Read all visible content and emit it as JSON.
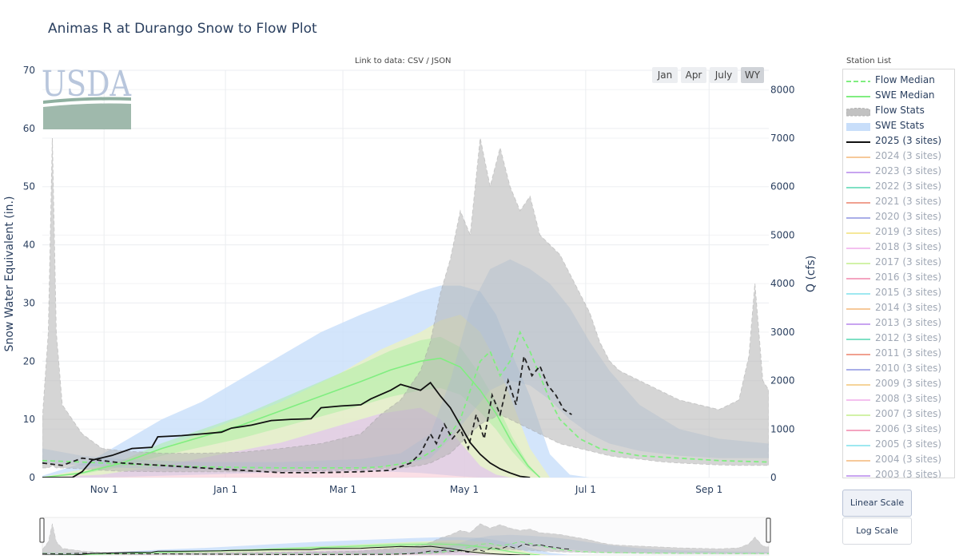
{
  "title": "Animas R at Durango Snow to Flow Plot",
  "link_prefix": "Link to data:",
  "link_csv": "CSV",
  "link_sep": "/",
  "link_json": "JSON",
  "logo_text": "USDA",
  "range_buttons": [
    "Jan",
    "Apr",
    "July",
    "WY"
  ],
  "active_range": "WY",
  "legend_title": "Station List",
  "scale_buttons": [
    "Linear Scale",
    "Log Scale"
  ],
  "colors": {
    "flow_median": "#80ee80",
    "swe_median": "#80ee80",
    "flow_stats": "#b4b4b4",
    "swe_stats": "#c8defa",
    "current": "#111111",
    "logo": "#b8c6dc"
  },
  "legend_items": [
    {
      "label": "Flow Median",
      "kind": "dash",
      "color": "#80ee80"
    },
    {
      "label": "SWE Median",
      "kind": "line",
      "color": "#80ee80"
    },
    {
      "label": "Flow Stats",
      "kind": "dashfill",
      "color": "#b4b4b4"
    },
    {
      "label": "SWE Stats",
      "kind": "fill",
      "color": "#c8defa"
    },
    {
      "label": "2025 (3 sites)",
      "kind": "line",
      "color": "#111111"
    },
    {
      "label": "2024 (3 sites)",
      "kind": "line",
      "color": "#f6c99a",
      "muted": true
    },
    {
      "label": "2023 (3 sites)",
      "kind": "line",
      "color": "#c8a4f0",
      "muted": true
    },
    {
      "label": "2022 (3 sites)",
      "kind": "line",
      "color": "#7fe0c4",
      "muted": true
    },
    {
      "label": "2021 (3 sites)",
      "kind": "line",
      "color": "#f0a090",
      "muted": true
    },
    {
      "label": "2020 (3 sites)",
      "kind": "line",
      "color": "#a9aee8",
      "muted": true
    },
    {
      "label": "2019 (3 sites)",
      "kind": "line",
      "color": "#f5e89a",
      "muted": true
    },
    {
      "label": "2018 (3 sites)",
      "kind": "line",
      "color": "#f4c0ef",
      "muted": true
    },
    {
      "label": "2017 (3 sites)",
      "kind": "line",
      "color": "#d2f2a8",
      "muted": true
    },
    {
      "label": "2016 (3 sites)",
      "kind": "line",
      "color": "#f4a4c0",
      "muted": true
    },
    {
      "label": "2015 (3 sites)",
      "kind": "line",
      "color": "#9ee8f0",
      "muted": true
    },
    {
      "label": "2014 (3 sites)",
      "kind": "line",
      "color": "#f6c99a",
      "muted": true
    },
    {
      "label": "2013 (3 sites)",
      "kind": "line",
      "color": "#c8a4f0",
      "muted": true
    },
    {
      "label": "2012 (3 sites)",
      "kind": "line",
      "color": "#7fe0c4",
      "muted": true
    },
    {
      "label": "2011 (3 sites)",
      "kind": "line",
      "color": "#f0a090",
      "muted": true
    },
    {
      "label": "2010 (3 sites)",
      "kind": "line",
      "color": "#a9aee8",
      "muted": true
    },
    {
      "label": "2009 (3 sites)",
      "kind": "line",
      "color": "#f5d49a",
      "muted": true
    },
    {
      "label": "2008 (3 sites)",
      "kind": "line",
      "color": "#f4c0ef",
      "muted": true
    },
    {
      "label": "2007 (3 sites)",
      "kind": "line",
      "color": "#d2f2a8",
      "muted": true
    },
    {
      "label": "2006 (3 sites)",
      "kind": "line",
      "color": "#f4a4c0",
      "muted": true
    },
    {
      "label": "2005 (3 sites)",
      "kind": "line",
      "color": "#9ee8f0",
      "muted": true
    },
    {
      "label": "2004 (3 sites)",
      "kind": "line",
      "color": "#f6c99a",
      "muted": true
    },
    {
      "label": "2003 (3 sites)",
      "kind": "line",
      "color": "#c8a4f0",
      "muted": true
    }
  ],
  "chart_data": {
    "type": "line",
    "title": "Animas R at Durango Snow to Flow Plot",
    "xlabel": "",
    "ylabel": "Snow Water Equivalent (in.)",
    "y2label": "Q (cfs)",
    "x_tick_labels": [
      "Nov 1",
      "Jan 1",
      "Mar 1",
      "May 1",
      "Jul 1",
      "Sep 1"
    ],
    "x_tick_days": [
      31,
      92,
      151,
      212,
      273,
      335
    ],
    "xlim_days": [
      0,
      365
    ],
    "ylim": [
      0,
      70
    ],
    "y_ticks": [
      0,
      10,
      20,
      30,
      40,
      50,
      60,
      70
    ],
    "y2lim": [
      0,
      8400
    ],
    "y2_ticks": [
      0,
      1000,
      2000,
      3000,
      4000,
      5000,
      6000,
      7000,
      8000
    ],
    "grid": true,
    "legend_placement": "right",
    "swe_series": {
      "swe_stats_outer": {
        "day": [
          0,
          25,
          40,
          60,
          80,
          100,
          120,
          140,
          160,
          175,
          190,
          200,
          210,
          220,
          228,
          235,
          245,
          255,
          265,
          275
        ],
        "low": [
          0,
          0,
          0.1,
          0.3,
          0.5,
          0.7,
          0.9,
          1.0,
          1.1,
          1.0,
          0.8,
          0.5,
          0.2,
          0,
          0,
          0,
          0,
          0,
          0,
          0
        ],
        "high": [
          0.3,
          3,
          6,
          10,
          13,
          17,
          21,
          25,
          28,
          30,
          32,
          33,
          33,
          32,
          28,
          22,
          14,
          4,
          0.5,
          0
        ]
      },
      "swe_stats_inner": {
        "day": [
          0,
          30,
          60,
          90,
          120,
          150,
          170,
          190,
          200,
          210,
          220,
          228,
          235,
          245,
          255
        ],
        "low": [
          0,
          0.5,
          2,
          4,
          6,
          9,
          11,
          12,
          10,
          6,
          2,
          0.5,
          0,
          0,
          0
        ],
        "high": [
          0.1,
          2,
          5,
          9,
          13,
          18,
          22,
          25,
          27,
          28,
          25,
          20,
          14,
          5,
          0
        ]
      },
      "swe_median": {
        "day": [
          0,
          20,
          40,
          60,
          80,
          100,
          120,
          140,
          160,
          175,
          190,
          200,
          210,
          220,
          228,
          236,
          244,
          250
        ],
        "value": [
          0,
          0.8,
          2.5,
          5,
          7,
          9,
          11.5,
          14,
          16.5,
          18.5,
          20,
          20.5,
          19,
          15,
          11,
          6,
          2,
          0
        ]
      },
      "swe_2025": {
        "day": [
          0,
          15,
          20,
          25,
          35,
          45,
          55,
          58,
          70,
          80,
          90,
          95,
          105,
          115,
          125,
          135,
          140,
          150,
          160,
          165,
          175,
          180,
          190,
          195,
          200,
          205,
          210,
          215,
          220,
          225,
          230,
          235,
          240,
          245
        ],
        "value": [
          0,
          0,
          1,
          3,
          3.8,
          5,
          5.2,
          7,
          7.2,
          7.5,
          7.8,
          8.5,
          9,
          9.8,
          10,
          10.1,
          12,
          12.3,
          12.5,
          13.5,
          15,
          16,
          15,
          16.3,
          14,
          12,
          9,
          6,
          4,
          2.5,
          1.5,
          0.8,
          0.2,
          0
        ]
      }
    },
    "flow_series": {
      "flow_stats_outer": {
        "day": [
          0,
          3,
          5,
          7,
          10,
          20,
          30,
          40,
          60,
          80,
          100,
          120,
          140,
          160,
          170,
          180,
          190,
          195,
          200,
          205,
          210,
          215,
          220,
          225,
          230,
          235,
          240,
          245,
          250,
          255,
          260,
          265,
          270,
          275,
          280,
          285,
          290,
          300,
          310,
          320,
          330,
          340,
          350,
          355,
          358,
          362,
          365
        ],
        "low": [
          200,
          200,
          250,
          200,
          200,
          180,
          150,
          130,
          120,
          120,
          120,
          130,
          140,
          160,
          180,
          200,
          250,
          300,
          400,
          500,
          700,
          900,
          1100,
          1200,
          1300,
          1200,
          1100,
          1000,
          900,
          800,
          700,
          650,
          600,
          550,
          500,
          450,
          420,
          380,
          330,
          300,
          280,
          260,
          250,
          250,
          250,
          250,
          250
        ],
        "high": [
          1200,
          3000,
          7000,
          3000,
          1500,
          900,
          600,
          550,
          500,
          500,
          520,
          600,
          700,
          900,
          1300,
          1600,
          2200,
          2800,
          3800,
          4500,
          5500,
          5000,
          7000,
          6000,
          6800,
          6000,
          5500,
          5800,
          5000,
          4800,
          4600,
          4200,
          3800,
          3400,
          2800,
          2400,
          2200,
          2000,
          1800,
          1600,
          1500,
          1400,
          1600,
          2500,
          4000,
          2000,
          1800
        ]
      },
      "flow_stats_inner": {
        "day": [
          0,
          20,
          40,
          80,
          120,
          160,
          180,
          195,
          205,
          215,
          225,
          235,
          245,
          255,
          265,
          275,
          285,
          300,
          320,
          340,
          365
        ],
        "low": [
          300,
          250,
          200,
          180,
          180,
          200,
          260,
          400,
          800,
          1300,
          1800,
          2000,
          1900,
          1600,
          1200,
          900,
          700,
          550,
          450,
          400,
          400
        ],
        "high": [
          600,
          450,
          380,
          320,
          320,
          380,
          500,
          900,
          2000,
          3500,
          4300,
          4500,
          4300,
          4000,
          3500,
          2800,
          2200,
          1500,
          1000,
          800,
          700
        ]
      },
      "flow_median": {
        "day": [
          0,
          20,
          40,
          60,
          80,
          100,
          120,
          140,
          160,
          170,
          180,
          190,
          200,
          205,
          210,
          215,
          220,
          225,
          230,
          235,
          240,
          245,
          250,
          255,
          260,
          270,
          280,
          290,
          300,
          320,
          340,
          365
        ],
        "value": [
          350,
          320,
          280,
          250,
          220,
          210,
          200,
          200,
          200,
          220,
          280,
          400,
          650,
          900,
          1200,
          1800,
          2400,
          2600,
          2100,
          2400,
          3000,
          2600,
          2100,
          1600,
          1200,
          800,
          600,
          520,
          450,
          400,
          350,
          320
        ]
      },
      "flow_2025": {
        "day": [
          0,
          10,
          20,
          30,
          40,
          60,
          80,
          100,
          120,
          140,
          160,
          175,
          185,
          190,
          195,
          198,
          202,
          206,
          210,
          214,
          218,
          222,
          226,
          230,
          234,
          238,
          242,
          246,
          250,
          254,
          258,
          262,
          266
        ],
        "value": [
          300,
          250,
          400,
          350,
          300,
          250,
          200,
          150,
          100,
          100,
          120,
          150,
          300,
          500,
          900,
          700,
          1100,
          800,
          1000,
          600,
          1300,
          800,
          1700,
          1300,
          2000,
          1500,
          2500,
          2100,
          2300,
          1900,
          1700,
          1400,
          1300
        ]
      }
    },
    "navigator": "range-slider"
  }
}
